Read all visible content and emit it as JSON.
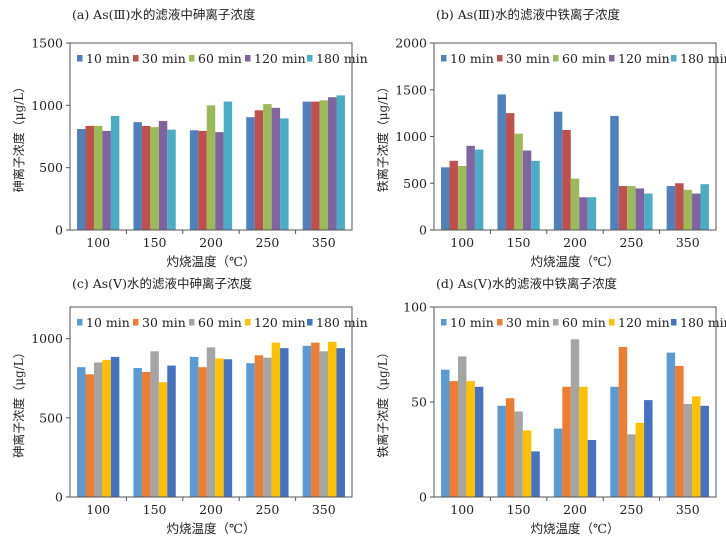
{
  "chart_data": [
    {
      "type": "bar",
      "title": "(a)  As(Ⅲ)水的滤液中砷离子浓度",
      "xlabel": "灼烧温度（℃）",
      "ylabel": "砷离子浓度（μg/L）",
      "categories": [
        "100",
        "150",
        "200",
        "250",
        "350"
      ],
      "ylim": [
        0,
        1500
      ],
      "yticks": [
        0,
        500,
        1000,
        1500
      ],
      "legend": "top",
      "grid": false,
      "series": [
        {
          "name": "10 min",
          "color": "#4F81BD",
          "values": [
            810,
            865,
            800,
            905,
            1030
          ]
        },
        {
          "name": "30 min",
          "color": "#C0504D",
          "values": [
            835,
            835,
            795,
            960,
            1030
          ]
        },
        {
          "name": "60 min",
          "color": "#9BBB59",
          "values": [
            835,
            825,
            1000,
            1010,
            1040
          ]
        },
        {
          "name": "120 min",
          "color": "#8064A2",
          "values": [
            795,
            875,
            785,
            980,
            1065
          ]
        },
        {
          "name": "180 min",
          "color": "#4BACC6",
          "values": [
            915,
            805,
            1030,
            895,
            1080
          ]
        }
      ]
    },
    {
      "type": "bar",
      "title": "(b)  As(Ⅲ)水的滤液中铁离子浓度",
      "xlabel": "灼烧温度（℃）",
      "ylabel": "铁离子浓度（μg/L）",
      "categories": [
        "100",
        "150",
        "200",
        "250",
        "350"
      ],
      "ylim": [
        0,
        2000
      ],
      "yticks": [
        0,
        500,
        1000,
        1500,
        2000
      ],
      "legend": "top",
      "grid": false,
      "series": [
        {
          "name": "10 min",
          "color": "#4F81BD",
          "values": [
            670,
            1450,
            1265,
            1220,
            470
          ]
        },
        {
          "name": "30 min",
          "color": "#C0504D",
          "values": [
            740,
            1250,
            1070,
            470,
            500
          ]
        },
        {
          "name": "60 min",
          "color": "#9BBB59",
          "values": [
            685,
            1030,
            550,
            470,
            430
          ]
        },
        {
          "name": "120 min",
          "color": "#8064A2",
          "values": [
            900,
            850,
            350,
            445,
            390
          ]
        },
        {
          "name": "180 min",
          "color": "#4BACC6",
          "values": [
            860,
            740,
            350,
            390,
            490
          ]
        }
      ]
    },
    {
      "type": "bar",
      "title": "(c)  As(Ⅴ)水的滤液中砷离子浓度",
      "xlabel": "灼烧温度（℃）",
      "ylabel": "砷离子浓度（μg/L）",
      "categories": [
        "100",
        "150",
        "200",
        "250",
        "350"
      ],
      "ylim": [
        0,
        1200
      ],
      "yticks": [
        0,
        500,
        1000
      ],
      "legend": "top",
      "grid": false,
      "series": [
        {
          "name": "10 min",
          "color": "#5B9BD5",
          "values": [
            820,
            815,
            885,
            845,
            955
          ]
        },
        {
          "name": "30 min",
          "color": "#ED7D31",
          "values": [
            775,
            790,
            820,
            895,
            975
          ]
        },
        {
          "name": "60 min",
          "color": "#A5A5A5",
          "values": [
            850,
            920,
            945,
            880,
            920
          ]
        },
        {
          "name": "120 min",
          "color": "#FFC000",
          "values": [
            865,
            725,
            875,
            975,
            980
          ]
        },
        {
          "name": "180 min",
          "color": "#4472C4",
          "values": [
            885,
            830,
            870,
            940,
            940
          ]
        }
      ]
    },
    {
      "type": "bar",
      "title": "(d)  As(Ⅴ)水的滤液中铁离子浓度",
      "xlabel": "灼烧温度（℃）",
      "ylabel": "铁离子浓度（μg/L）",
      "categories": [
        "100",
        "150",
        "200",
        "250",
        "350"
      ],
      "ylim": [
        0,
        100
      ],
      "yticks": [
        0,
        50,
        100
      ],
      "legend": "top",
      "grid": false,
      "series": [
        {
          "name": "10 min",
          "color": "#5B9BD5",
          "values": [
            67,
            48,
            36,
            58,
            76
          ]
        },
        {
          "name": "30 min",
          "color": "#ED7D31",
          "values": [
            61,
            52,
            58,
            79,
            69
          ]
        },
        {
          "name": "60 min",
          "color": "#A5A5A5",
          "values": [
            74,
            45,
            83,
            33,
            49
          ]
        },
        {
          "name": "120 min",
          "color": "#FFC000",
          "values": [
            61,
            35,
            58,
            39,
            53
          ]
        },
        {
          "name": "180 min",
          "color": "#4472C4",
          "values": [
            58,
            24,
            30,
            51,
            48
          ]
        }
      ]
    }
  ]
}
